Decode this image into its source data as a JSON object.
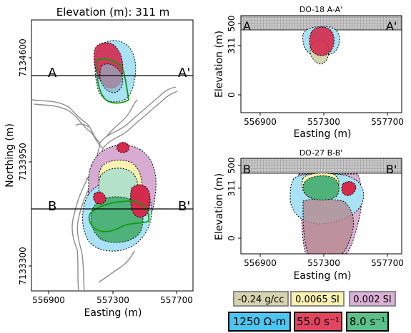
{
  "chart_data": [
    {
      "type": "map",
      "title": "Elevation (m):   311 m",
      "xlabel": "Easting (m)",
      "ylabel": "Northing (m)",
      "xticks": [
        "556900",
        "557300",
        "557700"
      ],
      "yticks": [
        "7134600",
        "7133950",
        "7133300"
      ],
      "xlim": [
        556800,
        557800
      ],
      "section_lines": [
        {
          "start_label": "A",
          "end_label": "A'",
          "northing": 7134500
        },
        {
          "start_label": "B",
          "end_label": "B'",
          "northing": 7133650
        }
      ]
    },
    {
      "type": "section",
      "title": "DO-18 A-A'",
      "xlabel": "Easting (m)",
      "ylabel": "Elevation (m)",
      "xticks": [
        "556900",
        "557300",
        "557700"
      ],
      "yticks": [
        "500",
        "311",
        "0"
      ],
      "xlim": [
        556800,
        557800
      ],
      "start_label": "A",
      "end_label": "A'"
    },
    {
      "type": "section",
      "title": "DO-27 B-B'",
      "xlabel": "Easting (m)",
      "ylabel": "Elevation (m)",
      "xticks": [
        "556900",
        "557300",
        "557700"
      ],
      "yticks": [
        "500",
        "311",
        "0"
      ],
      "xlim": [
        556800,
        557800
      ],
      "start_label": "B",
      "end_label": "B'"
    }
  ],
  "legend": {
    "row1": [
      {
        "label": "-0.24 g/cc",
        "color": "#d6d4b0"
      },
      {
        "label": "0.0065 SI",
        "color": "#fbf1b0"
      },
      {
        "label": "0.002 SI",
        "color": "#d9b0d6"
      }
    ],
    "row2": [
      {
        "label": "1250 Ω-m",
        "color": "#4cc6f0"
      },
      {
        "label": "55.0 s⁻¹",
        "color": "#e24560"
      },
      {
        "label": "8.0 s⁻¹",
        "color": "#5cc08a"
      }
    ]
  }
}
